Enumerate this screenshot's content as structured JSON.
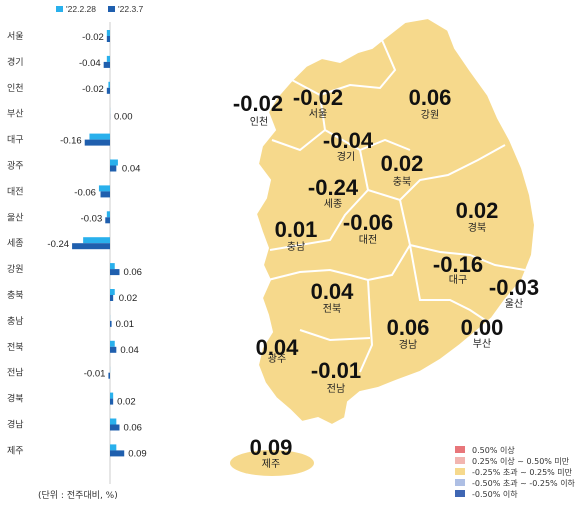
{
  "chart_data": {
    "type": "bar",
    "orientation": "horizontal",
    "legend": [
      "'22.2.28",
      "'22.3.7"
    ],
    "colors": {
      "prev": "#29b0ec",
      "curr": "#1f5fae"
    },
    "categories": [
      "서울",
      "경기",
      "인천",
      "부산",
      "대구",
      "광주",
      "대전",
      "울산",
      "세종",
      "강원",
      "충북",
      "충남",
      "전북",
      "전남",
      "경북",
      "경남",
      "제주"
    ],
    "series": [
      {
        "name": "'22.2.28",
        "values": [
          -0.02,
          -0.02,
          -0.01,
          0.0,
          -0.13,
          0.05,
          -0.07,
          -0.02,
          -0.17,
          0.03,
          0.03,
          0.0,
          0.03,
          0.0,
          0.02,
          0.04,
          0.04
        ]
      },
      {
        "name": "'22.3.7",
        "values": [
          -0.02,
          -0.04,
          -0.02,
          0.0,
          -0.16,
          0.04,
          -0.06,
          -0.03,
          -0.24,
          0.06,
          0.02,
          0.01,
          0.04,
          -0.01,
          0.02,
          0.06,
          0.09
        ]
      }
    ],
    "value_labels": [
      "-0.02",
      "-0.04",
      "-0.02",
      "0.00",
      "-0.16",
      "0.04",
      "-0.06",
      "-0.03",
      "-0.24",
      "0.06",
      "0.02",
      "0.01",
      "0.04",
      "-0.01",
      "0.02",
      "0.06",
      "0.09"
    ],
    "unit_note": "(단위 : 전주대비, %)"
  },
  "map": {
    "fill": "#f6d98c",
    "regions": [
      {
        "name": "인천",
        "value": "-0.02"
      },
      {
        "name": "서울",
        "value": "-0.02"
      },
      {
        "name": "강원",
        "value": "0.06"
      },
      {
        "name": "경기",
        "value": "-0.04"
      },
      {
        "name": "충북",
        "value": "0.02"
      },
      {
        "name": "세종",
        "value": "-0.24"
      },
      {
        "name": "경북",
        "value": "0.02"
      },
      {
        "name": "충남",
        "value": "0.01"
      },
      {
        "name": "대전",
        "value": "-0.06"
      },
      {
        "name": "대구",
        "value": "-0.16"
      },
      {
        "name": "울산",
        "value": "-0.03"
      },
      {
        "name": "전북",
        "value": "0.04"
      },
      {
        "name": "경남",
        "value": "0.06"
      },
      {
        "name": "부산",
        "value": "0.00"
      },
      {
        "name": "광주",
        "value": "0.04"
      },
      {
        "name": "전남",
        "value": "-0.01"
      },
      {
        "name": "제주",
        "value": "0.09"
      }
    ],
    "key": [
      {
        "label": "0.50% 이상",
        "color": "#e8767a"
      },
      {
        "label": "0.25% 이상 ~ 0.50% 미만",
        "color": "#f2b5b0"
      },
      {
        "label": "-0.25% 초과 ~ 0.25% 미만",
        "color": "#f6d98c"
      },
      {
        "label": "-0.50% 초과 ~ -0.25% 이하",
        "color": "#aebfe4"
      },
      {
        "label": "-0.50% 이하",
        "color": "#3f66b3"
      }
    ]
  }
}
